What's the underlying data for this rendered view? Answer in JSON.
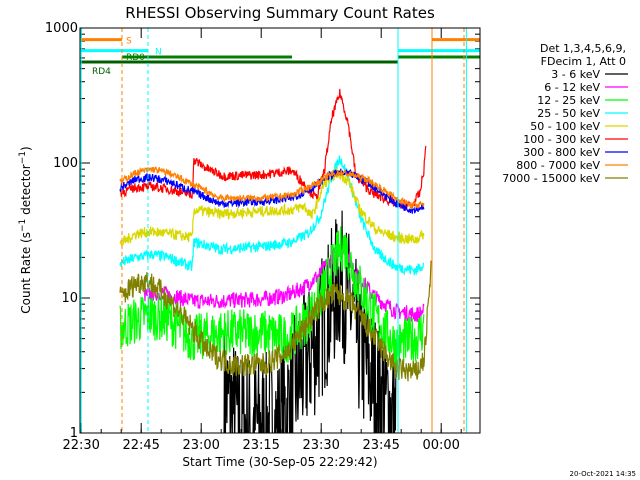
{
  "chart_data": {
    "type": "line",
    "title": "RHESSI Observing Summary Count Rates",
    "ylabel_main": "Count Rate (s",
    "ylabel_sup1": "−1",
    "ylabel_mid": " detector",
    "ylabel_sup2": "−1",
    "ylabel_end": ")",
    "xlabel": "Start Time (30-Sep-05 22:29:42)",
    "footer": "20-Oct-2021 14:35",
    "yscale": "log",
    "ylim": [
      1,
      1000
    ],
    "xlim_minutes": [
      0,
      100
    ],
    "y_ticks": [
      {
        "v": 1,
        "label": "1"
      },
      {
        "v": 10,
        "label": "10"
      },
      {
        "v": 100,
        "label": "100"
      },
      {
        "v": 1000,
        "label": "1000"
      }
    ],
    "x_ticks": [
      {
        "t": 0.3,
        "label": "22:30"
      },
      {
        "t": 15.3,
        "label": "22:45"
      },
      {
        "t": 30.3,
        "label": "23:00"
      },
      {
        "t": 45.3,
        "label": "23:15"
      },
      {
        "t": 60.3,
        "label": "23:30"
      },
      {
        "t": 75.3,
        "label": "23:45"
      },
      {
        "t": 90.3,
        "label": "00:00"
      }
    ],
    "legend_header": [
      "Det 1,3,4,5,6,9,",
      "FDecim 1, Att 0"
    ],
    "legend": [
      {
        "label": "3 - 6 keV",
        "color": "#000000"
      },
      {
        "label": "6 - 12 keV",
        "color": "#ff00ff"
      },
      {
        "label": "12 - 25 keV",
        "color": "#00ff00"
      },
      {
        "label": "25 - 50 keV",
        "color": "#00ffff"
      },
      {
        "label": "50 - 100 keV",
        "color": "#d8d800"
      },
      {
        "label": "100 - 300 keV",
        "color": "#ff0000"
      },
      {
        "label": "300 - 800 keV",
        "color": "#0000ff"
      },
      {
        "label": "800 - 7000 keV",
        "color": "#ff8000"
      },
      {
        "label": "7000 - 15000 keV",
        "color": "#808000"
      }
    ],
    "flags": [
      {
        "label": "S",
        "color": "#ff8000",
        "segments": [
          [
            0,
            10.5
          ],
          [
            88,
            100
          ]
        ]
      },
      {
        "label": "N",
        "color": "#00ffff",
        "segments": [
          [
            0,
            17
          ],
          [
            79.5,
            100
          ]
        ]
      },
      {
        "label": "RD0",
        "color": "#008000",
        "segments": [
          [
            10.5,
            28
          ],
          [
            28,
            53
          ],
          [
            79.5,
            100
          ]
        ]
      },
      {
        "label": "RD4",
        "color": "#006000",
        "segments": [
          [
            0,
            28
          ],
          [
            28,
            53
          ],
          [
            53,
            79.5
          ]
        ]
      }
    ],
    "series": [
      {
        "name": "3 - 6 keV",
        "color": "#000000",
        "noise": 0.55,
        "points": [
          [
            36,
            2
          ],
          [
            40,
            1.2
          ],
          [
            50,
            1.1
          ],
          [
            53,
            2
          ],
          [
            58,
            4
          ],
          [
            62,
            8
          ],
          [
            65,
            14
          ],
          [
            68,
            8
          ],
          [
            70,
            4
          ],
          [
            74,
            2.2
          ],
          [
            79,
            1.3
          ]
        ]
      },
      {
        "name": "6 - 12 keV",
        "color": "#ff00ff",
        "noise": 0.06,
        "points": [
          [
            16,
            10.5
          ],
          [
            20,
            11
          ],
          [
            28,
            9.5
          ],
          [
            34,
            9.5
          ],
          [
            46,
            9.8
          ],
          [
            52,
            10.5
          ],
          [
            56,
            12
          ],
          [
            60,
            15
          ],
          [
            64,
            22
          ],
          [
            66,
            24
          ],
          [
            69,
            15
          ],
          [
            74,
            10
          ],
          [
            79,
            8
          ],
          [
            84,
            7.5
          ],
          [
            86,
            8
          ]
        ]
      },
      {
        "name": "12 - 25 keV",
        "color": "#00ff00",
        "noise": 0.18,
        "points": [
          [
            10,
            6
          ],
          [
            17,
            7.5
          ],
          [
            22,
            7
          ],
          [
            28,
            5
          ],
          [
            35,
            5.5
          ],
          [
            46,
            5.5
          ],
          [
            52,
            5
          ],
          [
            56,
            6.5
          ],
          [
            60,
            10
          ],
          [
            64,
            20
          ],
          [
            66,
            25
          ],
          [
            69,
            14
          ],
          [
            74,
            7
          ],
          [
            79,
            4.5
          ],
          [
            84,
            5
          ],
          [
            86,
            6
          ]
        ]
      },
      {
        "name": "25 - 50 keV",
        "color": "#00ffff",
        "noise": 0.04,
        "points": [
          [
            10,
            18
          ],
          [
            14,
            20
          ],
          [
            18,
            21
          ],
          [
            22,
            20
          ],
          [
            28,
            17
          ],
          [
            28.5,
            26
          ],
          [
            35,
            23
          ],
          [
            46,
            24
          ],
          [
            53,
            26
          ],
          [
            57,
            30
          ],
          [
            60,
            40
          ],
          [
            63,
            80
          ],
          [
            65,
            110
          ],
          [
            67,
            80
          ],
          [
            70,
            40
          ],
          [
            74,
            22
          ],
          [
            79,
            17
          ],
          [
            84,
            16
          ],
          [
            86,
            18
          ]
        ]
      },
      {
        "name": "50 - 100 keV",
        "color": "#d8d800",
        "noise": 0.04,
        "points": [
          [
            10,
            25
          ],
          [
            14,
            30
          ],
          [
            18,
            31
          ],
          [
            22,
            30
          ],
          [
            28,
            28
          ],
          [
            28.5,
            45
          ],
          [
            35,
            42
          ],
          [
            46,
            44
          ],
          [
            53,
            45
          ],
          [
            56,
            48
          ],
          [
            58,
            40
          ],
          [
            61,
            70
          ],
          [
            64,
            85
          ],
          [
            67,
            75
          ],
          [
            70,
            45
          ],
          [
            74,
            32
          ],
          [
            79,
            28
          ],
          [
            84,
            27
          ],
          [
            86,
            30
          ]
        ]
      },
      {
        "name": "100 - 300 keV",
        "color": "#ff0000",
        "noise": 0.035,
        "points": [
          [
            10,
            60
          ],
          [
            14,
            66
          ],
          [
            18,
            67
          ],
          [
            22,
            64
          ],
          [
            28,
            58
          ],
          [
            28.5,
            105
          ],
          [
            32,
            90
          ],
          [
            36,
            80
          ],
          [
            46,
            82
          ],
          [
            53,
            88
          ],
          [
            56,
            70
          ],
          [
            59,
            55
          ],
          [
            61,
            85
          ],
          [
            63,
            220
          ],
          [
            65,
            330
          ],
          [
            67,
            200
          ],
          [
            69,
            80
          ],
          [
            73,
            60
          ],
          [
            79,
            50
          ],
          [
            83,
            48
          ],
          [
            85,
            60
          ],
          [
            86,
            90
          ],
          [
            86.5,
            140
          ]
        ]
      },
      {
        "name": "300 - 800 keV",
        "color": "#0000ff",
        "noise": 0.03,
        "points": [
          [
            10,
            65
          ],
          [
            14,
            76
          ],
          [
            18,
            78
          ],
          [
            22,
            73
          ],
          [
            28,
            62
          ],
          [
            35,
            50
          ],
          [
            46,
            52
          ],
          [
            53,
            55
          ],
          [
            58,
            65
          ],
          [
            62,
            80
          ],
          [
            65,
            85
          ],
          [
            68,
            82
          ],
          [
            72,
            72
          ],
          [
            79,
            50
          ],
          [
            83,
            45
          ],
          [
            86,
            48
          ]
        ]
      },
      {
        "name": "800 - 7000 keV",
        "color": "#ff8000",
        "noise": 0.025,
        "points": [
          [
            10,
            72
          ],
          [
            14,
            85
          ],
          [
            18,
            90
          ],
          [
            22,
            85
          ],
          [
            28,
            70
          ],
          [
            35,
            55
          ],
          [
            46,
            55
          ],
          [
            53,
            58
          ],
          [
            58,
            68
          ],
          [
            62,
            80
          ],
          [
            65,
            85
          ],
          [
            68,
            82
          ],
          [
            72,
            75
          ],
          [
            79,
            55
          ],
          [
            83,
            48
          ],
          [
            86,
            50
          ]
        ]
      },
      {
        "name": "7000 - 15000 keV",
        "color": "#808000",
        "noise": 0.09,
        "points": [
          [
            10,
            10
          ],
          [
            14,
            13
          ],
          [
            17,
            13.5
          ],
          [
            22,
            10
          ],
          [
            28,
            6
          ],
          [
            32,
            4
          ],
          [
            38,
            3.2
          ],
          [
            46,
            3.2
          ],
          [
            52,
            4
          ],
          [
            56,
            6
          ],
          [
            60,
            9
          ],
          [
            64,
            11
          ],
          [
            68,
            9
          ],
          [
            72,
            6
          ],
          [
            76,
            4
          ],
          [
            79,
            3
          ],
          [
            84,
            2.8
          ],
          [
            86,
            3.5
          ],
          [
            88,
            20
          ]
        ]
      }
    ]
  }
}
